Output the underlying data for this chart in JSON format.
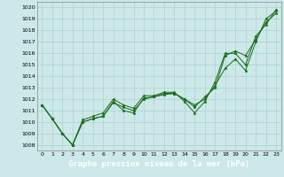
{
  "title": "Graphe pression niveau de la mer (hPa)",
  "bg_color": "#cce8e8",
  "footer_bg": "#1a6b1a",
  "footer_text_color": "#ffffff",
  "grid_color": "#b0d0d0",
  "line_color": "#1a6b1a",
  "marker_color": "#1a6b1a",
  "xlim": [
    -0.5,
    23.5
  ],
  "ylim": [
    1007.5,
    1020.5
  ],
  "xticks": [
    0,
    1,
    2,
    3,
    4,
    5,
    6,
    7,
    8,
    9,
    10,
    11,
    12,
    13,
    14,
    15,
    16,
    17,
    18,
    19,
    20,
    21,
    22,
    23
  ],
  "yticks": [
    1008,
    1009,
    1010,
    1011,
    1012,
    1013,
    1014,
    1015,
    1016,
    1017,
    1018,
    1019,
    1020
  ],
  "series": [
    {
      "x": [
        0,
        1,
        2,
        3,
        4,
        5,
        6,
        7,
        8,
        9,
        10,
        11,
        12,
        13,
        14,
        15,
        16,
        17,
        18,
        19,
        20,
        21,
        22,
        23
      ],
      "y": [
        1011.5,
        1010.3,
        1009.0,
        1008.0,
        1010.0,
        1010.3,
        1010.5,
        1011.7,
        1011.3,
        1011.0,
        1012.0,
        1012.2,
        1012.4,
        1012.5,
        1012.0,
        1011.5,
        1012.0,
        1013.2,
        1014.7,
        1015.5,
        1014.5,
        1017.0,
        1019.0,
        1019.7
      ]
    },
    {
      "x": [
        0,
        1,
        2,
        3,
        4,
        5,
        6,
        7,
        8,
        9,
        10,
        11,
        12,
        13,
        14,
        15,
        16,
        17,
        18,
        19,
        20,
        21,
        22,
        23
      ],
      "y": [
        1011.5,
        1010.3,
        1009.0,
        1008.0,
        1010.2,
        1010.5,
        1010.8,
        1012.0,
        1011.5,
        1011.2,
        1012.3,
        1012.3,
        1012.6,
        1012.6,
        1011.8,
        1010.8,
        1011.8,
        1013.5,
        1016.0,
        1016.0,
        1015.0,
        1017.5,
        1018.5,
        1019.8
      ]
    },
    {
      "x": [
        0,
        1,
        2,
        3,
        4,
        5,
        6,
        7,
        8,
        9,
        10,
        11,
        12,
        13,
        14,
        15,
        16,
        17,
        18,
        19,
        20,
        21,
        22,
        23
      ],
      "y": [
        1011.5,
        1010.3,
        1009.0,
        1008.0,
        1010.0,
        1010.3,
        1010.5,
        1011.8,
        1011.0,
        1010.8,
        1012.1,
        1012.2,
        1012.5,
        1012.5,
        1012.0,
        1011.3,
        1012.2,
        1013.0,
        1015.8,
        1016.2,
        1015.8,
        1017.2,
        1018.7,
        1019.5
      ]
    }
  ],
  "figsize": [
    3.2,
    2.0
  ],
  "dpi": 100
}
